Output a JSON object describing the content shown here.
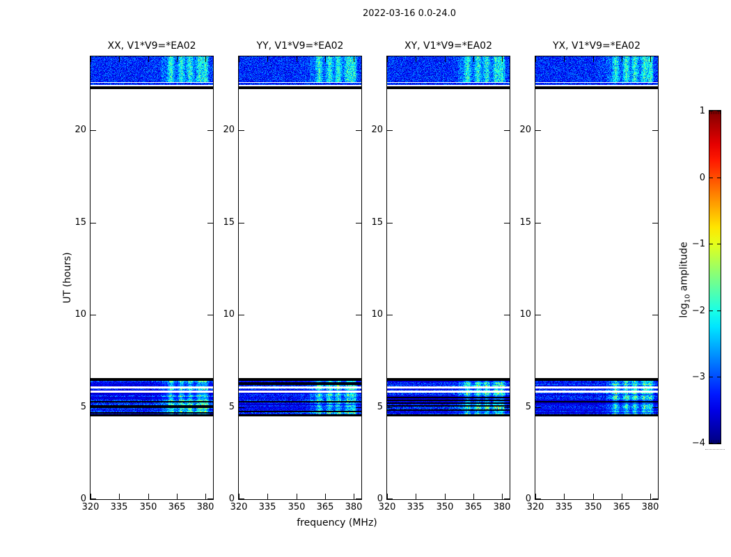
{
  "figure": {
    "title": "2022-03-16 0.0-24.0",
    "background": "#ffffff"
  },
  "chart_data": {
    "type": "heatmap",
    "title": "2022-03-16 0.0-24.0",
    "xlabel": "frequency (MHz)",
    "ylabel": "UT (hours)",
    "xlim": [
      320,
      384
    ],
    "ylim": [
      0,
      24
    ],
    "xticks": [
      320,
      335,
      350,
      365,
      380
    ],
    "yticks": [
      0,
      5,
      10,
      15,
      20
    ],
    "grid": false,
    "legend_position": "none",
    "panels": [
      {
        "label": "XX, V1*V9=*EA02"
      },
      {
        "label": "YY, V1*V9=*EA02"
      },
      {
        "label": "XY, V1*V9=*EA02"
      },
      {
        "label": "YX, V1*V9=*EA02"
      }
    ],
    "colorbar": {
      "label_prefix": "log",
      "label_sub": "10",
      "label_suffix": " amplitude",
      "ticks": [
        1,
        0,
        -1,
        -2,
        -3,
        -4
      ],
      "vmin": -4,
      "vmax": 1,
      "cmap": "jet",
      "position": "right"
    },
    "scans": [
      {
        "name": "scan1-noise",
        "kind": "noise",
        "style": "smooth",
        "t_top": 24.0,
        "t_bottom": 22.61,
        "bright": true
      },
      {
        "name": "scan1-gap",
        "kind": "gap",
        "t_top": 22.61,
        "t_bottom": 22.55
      },
      {
        "name": "scan1-tail",
        "kind": "noise",
        "style": "smooth",
        "t_top": 22.55,
        "t_bottom": 22.44,
        "bright": false
      },
      {
        "name": "scan1-gap2",
        "kind": "gap",
        "t_top": 22.44,
        "t_bottom": 22.38
      },
      {
        "name": "scan1-flag",
        "kind": "black",
        "t_top": 22.38,
        "t_bottom": 22.23
      },
      {
        "name": "scan2-flag",
        "kind": "black",
        "t_top": 6.55,
        "t_bottom": 6.43
      },
      {
        "name": "scan2-noiseA",
        "kind": "noise",
        "style": "striped",
        "t_top": 6.43,
        "t_bottom": 6.11,
        "bright": true
      },
      {
        "name": "scan2-gap",
        "kind": "gap",
        "t_top": 6.11,
        "t_bottom": 6.01
      },
      {
        "name": "scan2-noiseB",
        "kind": "noise",
        "style": "striped",
        "t_top": 6.01,
        "t_bottom": 5.88,
        "bright": true
      },
      {
        "name": "scan2-gap2",
        "kind": "gap",
        "t_top": 5.88,
        "t_bottom": 5.78
      },
      {
        "name": "scan2-noiseC",
        "kind": "noise",
        "style": "striped",
        "t_top": 5.78,
        "t_bottom": 4.6,
        "bright": true
      },
      {
        "name": "scan2-flag2",
        "kind": "black",
        "t_top": 4.6,
        "t_bottom": 4.48
      }
    ],
    "rfi": {
      "bright_mhz_range": [
        357,
        381.5
      ],
      "cluster_mhz": [
        362,
        367.5,
        372,
        377,
        380
      ]
    },
    "noise_base_color": "#0018c8",
    "accent_colors": {
      "bright_cyan": "#22bbee",
      "bright_green": "#55dd77",
      "flag_black": "#000000"
    }
  }
}
